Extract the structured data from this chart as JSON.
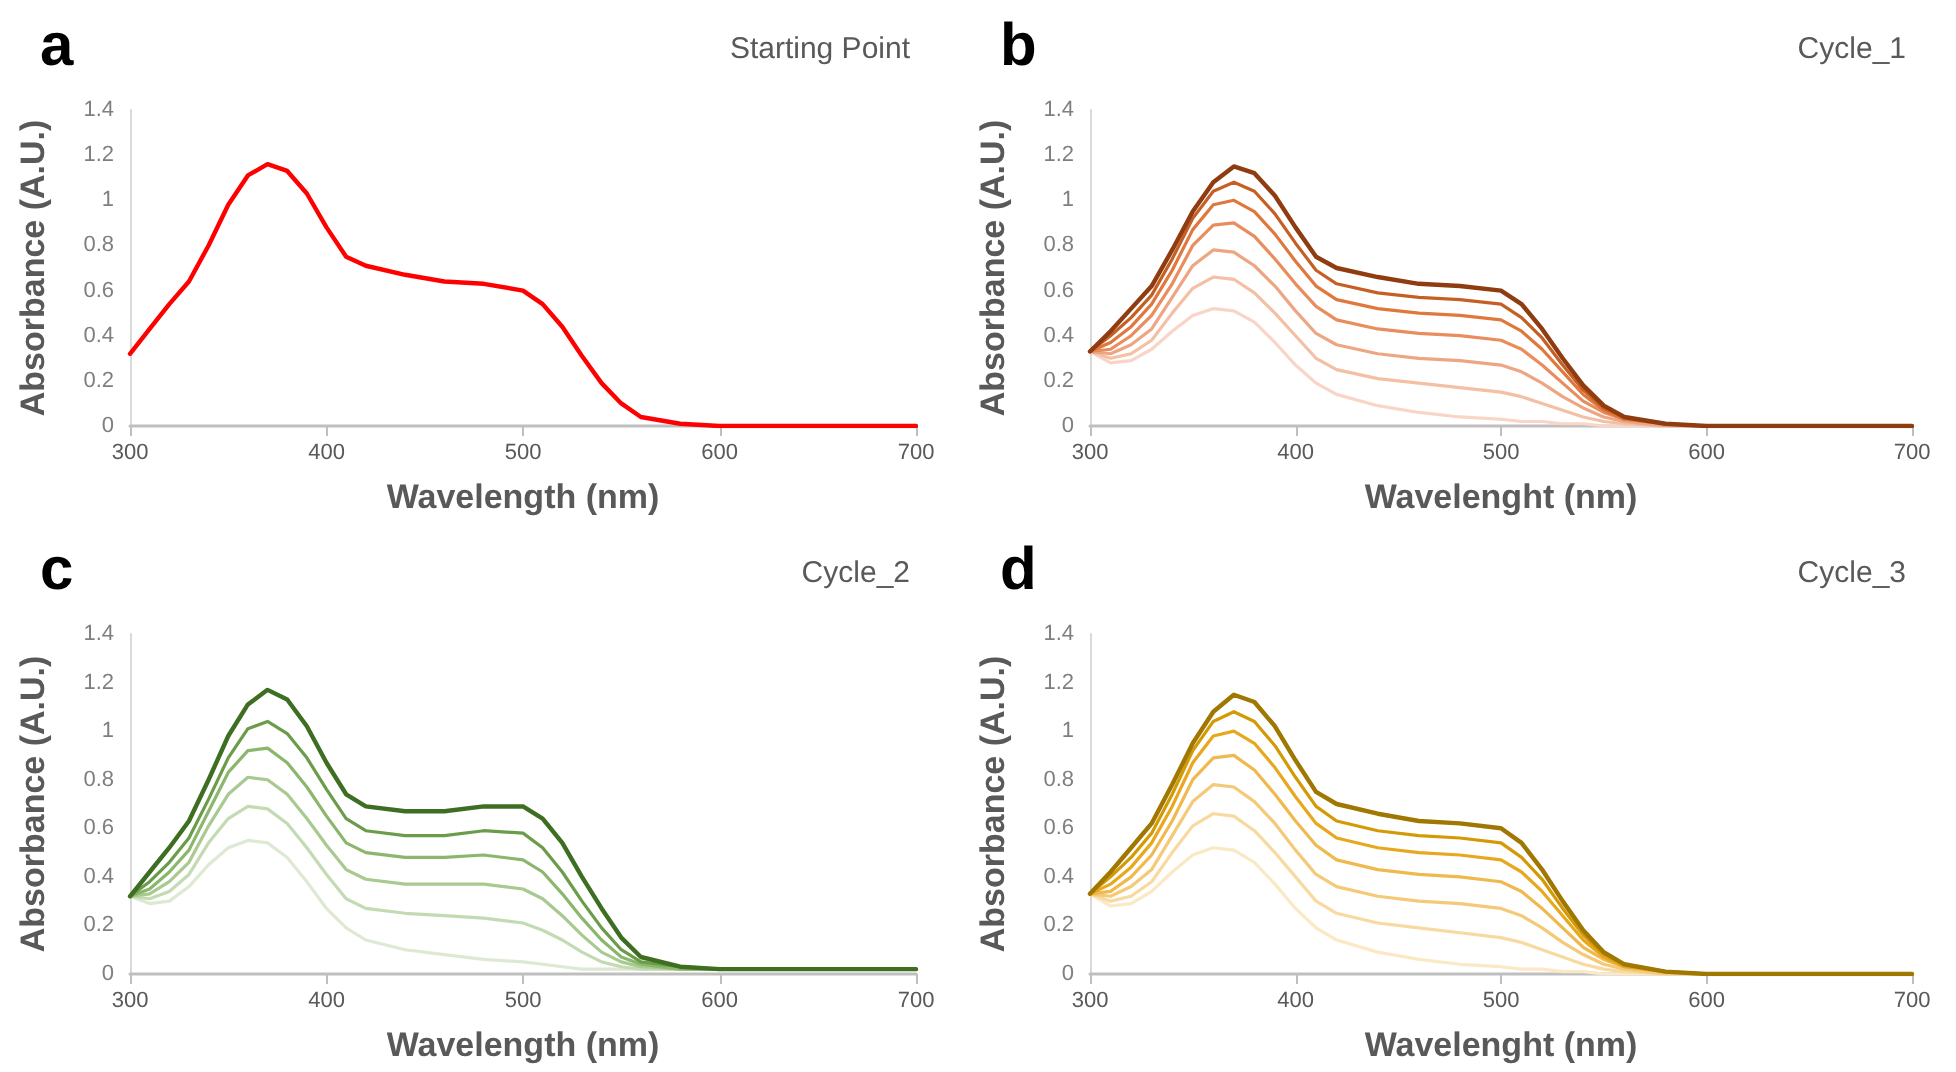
{
  "chart_data": [
    {
      "type": "line",
      "title": "Starting Point",
      "annotations": [
        "a"
      ],
      "xlabel": "Wavelength (nm)",
      "ylabel": "Absorbance (A.U.)",
      "xlim": [
        300,
        700
      ],
      "xticks": [
        300,
        400,
        500,
        600,
        700
      ],
      "ylim": [
        0,
        1.4
      ],
      "yticks": [
        0,
        0.2,
        0.4,
        0.6,
        0.8,
        1,
        1.2,
        1.4
      ],
      "grid": false,
      "marker": "none",
      "line_style": "solid",
      "x": [
        300,
        310,
        320,
        330,
        340,
        350,
        360,
        370,
        380,
        390,
        400,
        410,
        420,
        440,
        460,
        480,
        500,
        510,
        520,
        530,
        540,
        550,
        560,
        580,
        600,
        650,
        700
      ],
      "series": [
        {
          "color": "#ff0000",
          "values": [
            0.32,
            0.43,
            0.54,
            0.64,
            0.8,
            0.98,
            1.11,
            1.16,
            1.13,
            1.03,
            0.88,
            0.75,
            0.71,
            0.67,
            0.64,
            0.63,
            0.6,
            0.54,
            0.44,
            0.31,
            0.19,
            0.1,
            0.04,
            0.01,
            0,
            0,
            0
          ]
        }
      ]
    },
    {
      "type": "line",
      "title": "Cycle_1",
      "annotations": [
        "b"
      ],
      "xlabel": "Wavelenght (nm)",
      "ylabel": "Absorbance (A.U.)",
      "xlim": [
        300,
        700
      ],
      "xticks": [
        300,
        400,
        500,
        600,
        700
      ],
      "ylim": [
        0,
        1.4
      ],
      "yticks": [
        0,
        0.2,
        0.4,
        0.6,
        0.8,
        1,
        1.2,
        1.4
      ],
      "grid": false,
      "marker": "none",
      "line_style": "solid",
      "x": [
        300,
        310,
        320,
        330,
        340,
        350,
        360,
        370,
        380,
        390,
        400,
        410,
        420,
        440,
        460,
        480,
        500,
        510,
        520,
        530,
        540,
        550,
        560,
        580,
        600,
        650,
        700
      ],
      "series": [
        {
          "color": "#f8d5c6",
          "values": [
            0.33,
            0.28,
            0.29,
            0.34,
            0.42,
            0.49,
            0.52,
            0.51,
            0.46,
            0.37,
            0.27,
            0.19,
            0.14,
            0.09,
            0.06,
            0.04,
            0.03,
            0.02,
            0.02,
            0.01,
            0.01,
            0,
            0,
            0,
            0,
            0,
            0
          ]
        },
        {
          "color": "#f3bfa5",
          "values": [
            0.33,
            0.3,
            0.32,
            0.38,
            0.5,
            0.61,
            0.66,
            0.65,
            0.59,
            0.5,
            0.4,
            0.3,
            0.25,
            0.21,
            0.19,
            0.17,
            0.15,
            0.13,
            0.1,
            0.07,
            0.04,
            0.02,
            0.01,
            0,
            0,
            0,
            0
          ]
        },
        {
          "color": "#eea682",
          "values": [
            0.33,
            0.32,
            0.36,
            0.43,
            0.57,
            0.71,
            0.78,
            0.77,
            0.71,
            0.62,
            0.51,
            0.41,
            0.36,
            0.32,
            0.3,
            0.29,
            0.27,
            0.24,
            0.19,
            0.13,
            0.08,
            0.04,
            0.02,
            0,
            0,
            0,
            0
          ]
        },
        {
          "color": "#e98d5e",
          "values": [
            0.33,
            0.34,
            0.4,
            0.49,
            0.63,
            0.8,
            0.89,
            0.9,
            0.84,
            0.74,
            0.63,
            0.53,
            0.47,
            0.43,
            0.41,
            0.4,
            0.38,
            0.34,
            0.27,
            0.19,
            0.11,
            0.06,
            0.03,
            0.01,
            0,
            0,
            0
          ]
        },
        {
          "color": "#e0773c",
          "values": [
            0.33,
            0.37,
            0.44,
            0.54,
            0.69,
            0.87,
            0.98,
            1,
            0.95,
            0.85,
            0.73,
            0.62,
            0.56,
            0.52,
            0.5,
            0.49,
            0.47,
            0.42,
            0.34,
            0.24,
            0.14,
            0.07,
            0.03,
            0.01,
            0,
            0,
            0
          ]
        },
        {
          "color": "#c65f24",
          "values": [
            0.33,
            0.4,
            0.48,
            0.58,
            0.74,
            0.92,
            1.04,
            1.08,
            1.04,
            0.94,
            0.81,
            0.69,
            0.63,
            0.59,
            0.57,
            0.56,
            0.54,
            0.48,
            0.39,
            0.27,
            0.16,
            0.08,
            0.04,
            0.01,
            0,
            0,
            0
          ]
        },
        {
          "color": "#8e3c10",
          "values": [
            0.33,
            0.42,
            0.52,
            0.62,
            0.78,
            0.95,
            1.08,
            1.15,
            1.12,
            1.02,
            0.88,
            0.75,
            0.7,
            0.66,
            0.63,
            0.62,
            0.6,
            0.54,
            0.43,
            0.3,
            0.18,
            0.09,
            0.04,
            0.01,
            0,
            0,
            0
          ]
        }
      ]
    },
    {
      "type": "line",
      "title": "Cycle_2",
      "annotations": [
        "c"
      ],
      "xlabel": "Wavelength (nm)",
      "ylabel": "Absorbance (A.U.)",
      "xlim": [
        300,
        700
      ],
      "xticks": [
        300,
        400,
        500,
        600,
        700
      ],
      "ylim": [
        0,
        1.4
      ],
      "yticks": [
        0,
        0.2,
        0.4,
        0.6,
        0.8,
        1,
        1.2,
        1.4
      ],
      "grid": false,
      "marker": "none",
      "line_style": "solid",
      "x": [
        300,
        310,
        320,
        330,
        340,
        350,
        360,
        370,
        380,
        390,
        400,
        410,
        420,
        440,
        460,
        480,
        500,
        510,
        520,
        530,
        540,
        550,
        560,
        580,
        600,
        650,
        700
      ],
      "series": [
        {
          "color": "#dde9d3",
          "values": [
            0.32,
            0.29,
            0.3,
            0.36,
            0.45,
            0.52,
            0.55,
            0.54,
            0.48,
            0.38,
            0.27,
            0.19,
            0.14,
            0.1,
            0.08,
            0.06,
            0.05,
            0.04,
            0.03,
            0.02,
            0.02,
            0.02,
            0.02,
            0.02,
            0.02,
            0.02,
            0.02
          ]
        },
        {
          "color": "#c4dab3",
          "values": [
            0.32,
            0.31,
            0.34,
            0.41,
            0.54,
            0.64,
            0.69,
            0.68,
            0.62,
            0.52,
            0.41,
            0.31,
            0.27,
            0.25,
            0.24,
            0.23,
            0.21,
            0.18,
            0.14,
            0.09,
            0.05,
            0.03,
            0.02,
            0.02,
            0.02,
            0.02,
            0.02
          ]
        },
        {
          "color": "#a8c98f",
          "values": [
            0.32,
            0.33,
            0.38,
            0.46,
            0.61,
            0.74,
            0.81,
            0.8,
            0.74,
            0.64,
            0.53,
            0.43,
            0.39,
            0.37,
            0.37,
            0.37,
            0.35,
            0.31,
            0.24,
            0.16,
            0.09,
            0.05,
            0.03,
            0.02,
            0.02,
            0.02,
            0.02
          ]
        },
        {
          "color": "#8bb76c",
          "values": [
            0.32,
            0.35,
            0.42,
            0.51,
            0.67,
            0.83,
            0.92,
            0.93,
            0.87,
            0.77,
            0.65,
            0.54,
            0.5,
            0.48,
            0.48,
            0.49,
            0.47,
            0.42,
            0.33,
            0.23,
            0.14,
            0.07,
            0.04,
            0.02,
            0.02,
            0.02,
            0.02
          ]
        },
        {
          "color": "#6a9c49",
          "values": [
            0.32,
            0.38,
            0.46,
            0.56,
            0.72,
            0.89,
            1.01,
            1.04,
            0.99,
            0.89,
            0.76,
            0.64,
            0.59,
            0.57,
            0.57,
            0.59,
            0.58,
            0.52,
            0.42,
            0.3,
            0.19,
            0.1,
            0.05,
            0.03,
            0.02,
            0.02,
            0.02
          ]
        },
        {
          "color": "#3e6e22",
          "values": [
            0.32,
            0.42,
            0.52,
            0.63,
            0.8,
            0.98,
            1.11,
            1.17,
            1.13,
            1.02,
            0.87,
            0.74,
            0.69,
            0.67,
            0.67,
            0.69,
            0.69,
            0.64,
            0.54,
            0.4,
            0.27,
            0.15,
            0.07,
            0.03,
            0.02,
            0.02,
            0.02
          ]
        }
      ]
    },
    {
      "type": "line",
      "title": "Cycle_3",
      "annotations": [
        "d"
      ],
      "xlabel": "Wavelenght (nm)",
      "ylabel": "Absorbance (A.U.)",
      "xlim": [
        300,
        700
      ],
      "xticks": [
        300,
        400,
        500,
        600,
        700
      ],
      "ylim": [
        0,
        1.4
      ],
      "yticks": [
        0,
        0.2,
        0.4,
        0.6,
        0.8,
        1,
        1.2,
        1.4
      ],
      "grid": false,
      "marker": "none",
      "line_style": "solid",
      "x": [
        300,
        310,
        320,
        330,
        340,
        350,
        360,
        370,
        380,
        390,
        400,
        410,
        420,
        440,
        460,
        480,
        500,
        510,
        520,
        530,
        540,
        550,
        560,
        580,
        600,
        650,
        700
      ],
      "series": [
        {
          "color": "#fbe8c4",
          "values": [
            0.33,
            0.28,
            0.29,
            0.34,
            0.42,
            0.49,
            0.52,
            0.51,
            0.46,
            0.37,
            0.27,
            0.19,
            0.14,
            0.09,
            0.06,
            0.04,
            0.03,
            0.02,
            0.02,
            0.01,
            0.01,
            0,
            0,
            0,
            0,
            0,
            0
          ]
        },
        {
          "color": "#f8d9a0",
          "values": [
            0.33,
            0.3,
            0.32,
            0.38,
            0.5,
            0.61,
            0.66,
            0.65,
            0.59,
            0.5,
            0.4,
            0.3,
            0.25,
            0.21,
            0.19,
            0.17,
            0.15,
            0.13,
            0.1,
            0.07,
            0.04,
            0.02,
            0.01,
            0,
            0,
            0,
            0
          ]
        },
        {
          "color": "#f4c978",
          "values": [
            0.33,
            0.32,
            0.36,
            0.43,
            0.57,
            0.71,
            0.78,
            0.77,
            0.71,
            0.62,
            0.51,
            0.41,
            0.36,
            0.32,
            0.3,
            0.29,
            0.27,
            0.24,
            0.19,
            0.13,
            0.08,
            0.04,
            0.02,
            0,
            0,
            0,
            0
          ]
        },
        {
          "color": "#f0b94e",
          "values": [
            0.33,
            0.34,
            0.4,
            0.49,
            0.63,
            0.8,
            0.89,
            0.9,
            0.84,
            0.74,
            0.63,
            0.53,
            0.47,
            0.43,
            0.41,
            0.4,
            0.38,
            0.34,
            0.27,
            0.19,
            0.11,
            0.06,
            0.03,
            0.01,
            0,
            0,
            0
          ]
        },
        {
          "color": "#e8a81e",
          "values": [
            0.33,
            0.37,
            0.44,
            0.54,
            0.69,
            0.87,
            0.98,
            1,
            0.95,
            0.85,
            0.73,
            0.62,
            0.56,
            0.52,
            0.5,
            0.49,
            0.47,
            0.42,
            0.34,
            0.24,
            0.14,
            0.07,
            0.03,
            0.01,
            0,
            0,
            0
          ]
        },
        {
          "color": "#d49a05",
          "values": [
            0.33,
            0.4,
            0.48,
            0.58,
            0.74,
            0.92,
            1.04,
            1.08,
            1.04,
            0.94,
            0.81,
            0.69,
            0.63,
            0.59,
            0.57,
            0.56,
            0.54,
            0.48,
            0.39,
            0.27,
            0.16,
            0.08,
            0.04,
            0.01,
            0,
            0,
            0
          ]
        },
        {
          "color": "#a07700",
          "values": [
            0.33,
            0.42,
            0.52,
            0.62,
            0.78,
            0.95,
            1.08,
            1.15,
            1.12,
            1.02,
            0.88,
            0.75,
            0.7,
            0.66,
            0.63,
            0.62,
            0.6,
            0.54,
            0.43,
            0.3,
            0.18,
            0.09,
            0.04,
            0.01,
            0,
            0,
            0
          ]
        }
      ]
    }
  ]
}
